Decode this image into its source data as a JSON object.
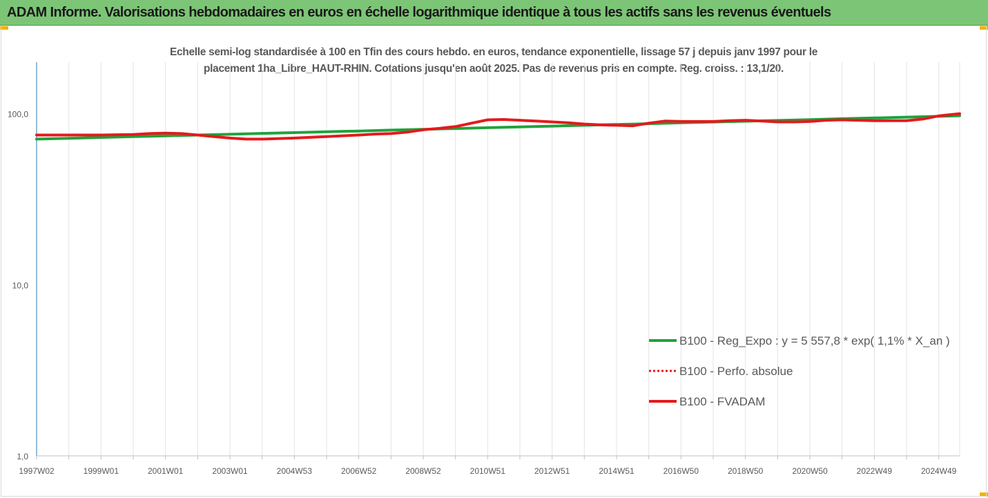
{
  "banner": {
    "title": "ADAM Informe. Valorisations hebdomadaires en euros en échelle logarithmique identique à tous les actifs sans les revenus éventuels",
    "background": "#7cc576",
    "corner_color": "#f0b400"
  },
  "chart_data": {
    "type": "line",
    "title": "Echelle semi-log standardisée à 100 en Tfin des cours hebdo. en euros, tendance exponentielle, lissage 57 j depuis janv 1997 pour le placement 1ha_Libre_HAUT-RHIN. Cotations jusqu'en août 2025. Pas de revenus pris en compte. Reg. croiss. : 13,1/20.",
    "title_lines": [
      "Echelle semi-log standardisée à 100 en Tfin des cours hebdo. en euros, tendance exponentielle, lissage 57 j depuis janv 1997 pour le",
      "placement 1ha_Libre_HAUT-RHIN. Cotations jusqu'en août 2025. Pas de revenus pris en compte. Reg. croiss. : 13,1/20."
    ],
    "y_scale": "log",
    "ylim": [
      1,
      200
    ],
    "y_ticks": [
      {
        "value": 1,
        "label": "1,0"
      },
      {
        "value": 10,
        "label": "10,0"
      },
      {
        "value": 100,
        "label": "100,0"
      }
    ],
    "x_range": [
      1997.0,
      2025.65
    ],
    "x_ticks": [
      {
        "value": 1997.0,
        "label": "1997W02"
      },
      {
        "value": 1999.0,
        "label": "1999W01"
      },
      {
        "value": 2001.0,
        "label": "2001W01"
      },
      {
        "value": 2003.0,
        "label": "2003W01"
      },
      {
        "value": 2005.0,
        "label": "2004W53"
      },
      {
        "value": 2007.0,
        "label": "2006W52"
      },
      {
        "value": 2009.0,
        "label": "2008W52"
      },
      {
        "value": 2011.0,
        "label": "2010W51"
      },
      {
        "value": 2013.0,
        "label": "2012W51"
      },
      {
        "value": 2015.0,
        "label": "2014W51"
      },
      {
        "value": 2017.0,
        "label": "2016W50"
      },
      {
        "value": 2019.0,
        "label": "2018W50"
      },
      {
        "value": 2021.0,
        "label": "2020W50"
      },
      {
        "value": 2023.0,
        "label": "2022W49"
      },
      {
        "value": 2025.0,
        "label": "2024W49"
      }
    ],
    "grid": "vertical",
    "legend_position": "right",
    "series": [
      {
        "name": "B100 - Reg_Expo : y = 5 557,8 * exp( 1,1% *  X_an )",
        "color": "#1fa33c",
        "style": "solid",
        "x": [
          1997.0,
          1998.0,
          1999.0,
          2000.0,
          2001.0,
          2002.0,
          2003.0,
          2004.0,
          2005.0,
          2006.0,
          2007.0,
          2008.0,
          2009.0,
          2010.0,
          2011.0,
          2012.0,
          2013.0,
          2014.0,
          2015.0,
          2016.0,
          2017.0,
          2018.0,
          2019.0,
          2020.0,
          2021.0,
          2022.0,
          2023.0,
          2024.0,
          2025.0,
          2025.65
        ],
        "values": [
          71.0,
          71.8,
          72.6,
          73.4,
          74.2,
          75.0,
          75.8,
          76.7,
          77.5,
          78.4,
          79.2,
          80.1,
          81.0,
          81.9,
          82.8,
          83.7,
          84.6,
          85.5,
          86.5,
          87.4,
          88.4,
          89.4,
          90.3,
          91.3,
          92.3,
          93.4,
          94.4,
          95.4,
          96.5,
          97.2
        ]
      },
      {
        "name": "B100 - Perfo. absolue",
        "color": "#e41a1c",
        "style": "dotted",
        "x": [
          1997.0,
          1998.0,
          1999.0,
          2000.0,
          2000.5,
          2001.0,
          2001.5,
          2002.0,
          2002.5,
          2003.0,
          2003.5,
          2004.0,
          2005.0,
          2006.0,
          2007.0,
          2007.5,
          2008.0,
          2008.5,
          2009.0,
          2009.5,
          2010.0,
          2010.5,
          2011.0,
          2011.5,
          2012.0,
          2012.5,
          2013.0,
          2013.5,
          2014.0,
          2014.5,
          2015.0,
          2015.5,
          2016.0,
          2016.5,
          2017.0,
          2017.5,
          2018.0,
          2018.5,
          2019.0,
          2019.5,
          2020.0,
          2020.5,
          2021.0,
          2021.5,
          2022.0,
          2022.5,
          2023.0,
          2023.5,
          2024.0,
          2024.5,
          2025.0,
          2025.65
        ],
        "values": [
          75.0,
          75.0,
          75.0,
          75.5,
          76.5,
          77.0,
          76.5,
          75.0,
          73.5,
          72.0,
          71.0,
          71.0,
          72.0,
          73.5,
          75.0,
          76.0,
          76.5,
          78.0,
          80.5,
          82.0,
          84.0,
          88.0,
          92.0,
          92.5,
          91.5,
          90.5,
          89.5,
          88.5,
          87.0,
          86.0,
          85.5,
          85.0,
          88.0,
          90.5,
          90.0,
          90.0,
          90.0,
          91.0,
          91.5,
          90.5,
          89.5,
          89.5,
          90.0,
          91.5,
          92.0,
          91.5,
          91.0,
          91.0,
          91.0,
          93.0,
          97.0,
          100.0
        ]
      },
      {
        "name": "B100 - FVADAM",
        "color": "#e41a1c",
        "style": "solid",
        "x": [
          1997.0,
          1998.0,
          1999.0,
          2000.0,
          2000.5,
          2001.0,
          2001.5,
          2002.0,
          2002.5,
          2003.0,
          2003.5,
          2004.0,
          2005.0,
          2006.0,
          2007.0,
          2007.5,
          2008.0,
          2008.5,
          2009.0,
          2009.5,
          2010.0,
          2010.5,
          2011.0,
          2011.5,
          2012.0,
          2012.5,
          2013.0,
          2013.5,
          2014.0,
          2014.5,
          2015.0,
          2015.5,
          2016.0,
          2016.5,
          2017.0,
          2017.5,
          2018.0,
          2018.5,
          2019.0,
          2019.5,
          2020.0,
          2020.5,
          2021.0,
          2021.5,
          2022.0,
          2022.5,
          2023.0,
          2023.5,
          2024.0,
          2024.5,
          2025.0,
          2025.65
        ],
        "values": [
          75.0,
          75.0,
          75.0,
          75.5,
          76.5,
          77.0,
          76.5,
          75.0,
          73.5,
          72.0,
          71.0,
          71.0,
          72.0,
          73.5,
          75.0,
          76.0,
          76.5,
          78.0,
          80.5,
          82.0,
          84.0,
          88.0,
          92.0,
          92.5,
          91.5,
          90.5,
          89.5,
          88.5,
          87.0,
          86.0,
          85.5,
          85.0,
          88.0,
          90.5,
          90.0,
          90.0,
          90.0,
          91.0,
          91.5,
          90.5,
          89.5,
          89.5,
          90.0,
          91.5,
          92.0,
          91.5,
          91.0,
          91.0,
          91.0,
          93.0,
          97.0,
          100.0
        ]
      }
    ]
  }
}
